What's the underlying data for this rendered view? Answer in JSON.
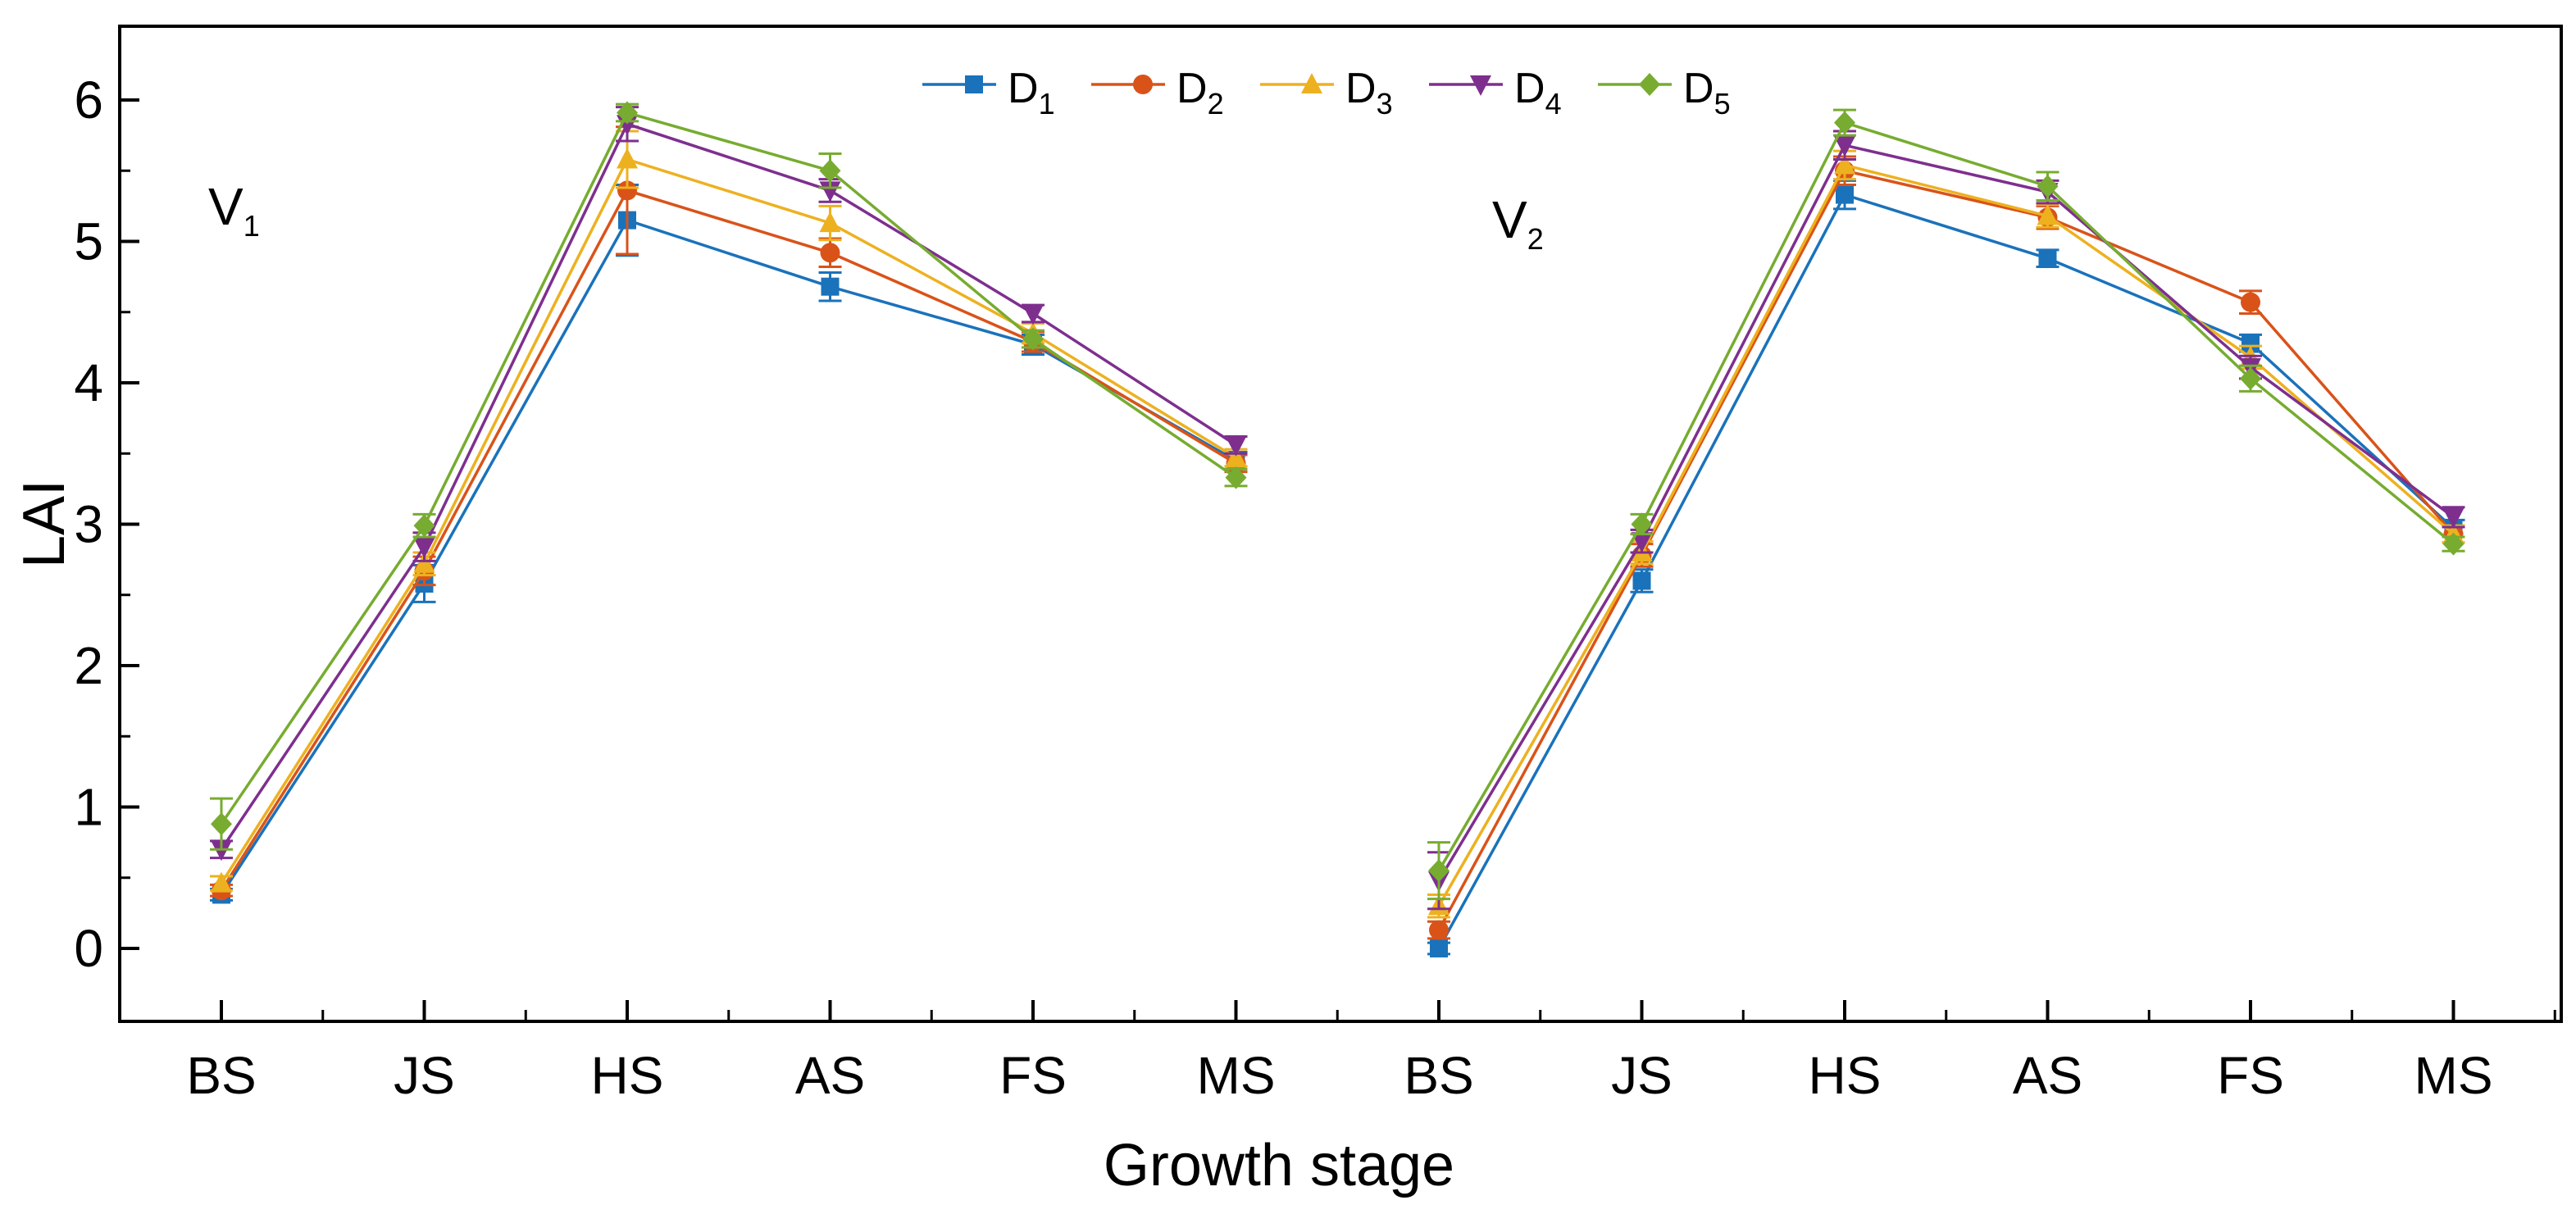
{
  "chart_data": {
    "type": "line",
    "ylabel": "LAI",
    "xlabel": "Growth stage",
    "ylim": [
      -0.5,
      6.5
    ],
    "yticks": [
      0,
      1,
      2,
      3,
      4,
      5,
      6
    ],
    "grid": false,
    "legend_position": "top-center",
    "panels": [
      {
        "label": "V",
        "label_sub": "1",
        "categories": [
          "BS",
          "JS",
          "HS",
          "AS",
          "FS",
          "MS"
        ]
      },
      {
        "label": "V",
        "label_sub": "2",
        "categories": [
          "BS",
          "JS",
          "HS",
          "AS",
          "FS",
          "MS"
        ]
      }
    ],
    "series": [
      {
        "name": "D",
        "name_sub": "1",
        "color": "#1a72bb",
        "marker": "square",
        "values": [
          [
            0.38,
            2.58,
            5.15,
            4.68,
            4.27,
            3.45
          ],
          [
            0.0,
            2.6,
            5.33,
            4.88,
            4.28,
            2.97
          ]
        ],
        "errors": [
          [
            0.04,
            0.13,
            0.25,
            0.1,
            0.07,
            0.06
          ],
          [
            0.04,
            0.08,
            0.1,
            0.06,
            0.06,
            0.06
          ]
        ]
      },
      {
        "name": "D",
        "name_sub": "2",
        "color": "#d95319",
        "marker": "circle",
        "values": [
          [
            0.41,
            2.67,
            5.36,
            4.92,
            4.29,
            3.43
          ],
          [
            0.13,
            2.78,
            5.5,
            5.17,
            4.57,
            2.93
          ]
        ],
        "errors": [
          [
            0.04,
            0.1,
            0.45,
            0.1,
            0.07,
            0.06
          ],
          [
            0.06,
            0.08,
            0.1,
            0.08,
            0.08,
            0.06
          ]
        ]
      },
      {
        "name": "D",
        "name_sub": "3",
        "color": "#edb120",
        "marker": "triangle-up",
        "values": [
          [
            0.46,
            2.72,
            5.58,
            5.13,
            4.35,
            3.47
          ],
          [
            0.3,
            2.8,
            5.54,
            5.18,
            4.18,
            2.93
          ]
        ],
        "errors": [
          [
            0.05,
            0.08,
            0.2,
            0.12,
            0.07,
            0.06
          ],
          [
            0.08,
            0.08,
            0.1,
            0.08,
            0.08,
            0.06
          ]
        ]
      },
      {
        "name": "D",
        "name_sub": "4",
        "color": "#7e2f8e",
        "marker": "triangle-down",
        "values": [
          [
            0.7,
            2.84,
            5.83,
            5.36,
            4.49,
            3.56
          ],
          [
            0.48,
            2.88,
            5.68,
            5.35,
            4.11,
            3.05
          ]
        ],
        "errors": [
          [
            0.06,
            0.1,
            0.12,
            0.08,
            0.06,
            0.06
          ],
          [
            0.2,
            0.08,
            0.1,
            0.08,
            0.08,
            0.07
          ]
        ]
      },
      {
        "name": "D",
        "name_sub": "5",
        "color": "#77ac30",
        "marker": "diamond",
        "values": [
          [
            0.88,
            2.99,
            5.91,
            5.5,
            4.31,
            3.33
          ],
          [
            0.55,
            3.0,
            5.84,
            5.39,
            4.03,
            2.86
          ]
        ],
        "errors": [
          [
            0.18,
            0.08,
            0.06,
            0.12,
            0.06,
            0.06
          ],
          [
            0.2,
            0.07,
            0.09,
            0.1,
            0.09,
            0.05
          ]
        ]
      }
    ]
  }
}
